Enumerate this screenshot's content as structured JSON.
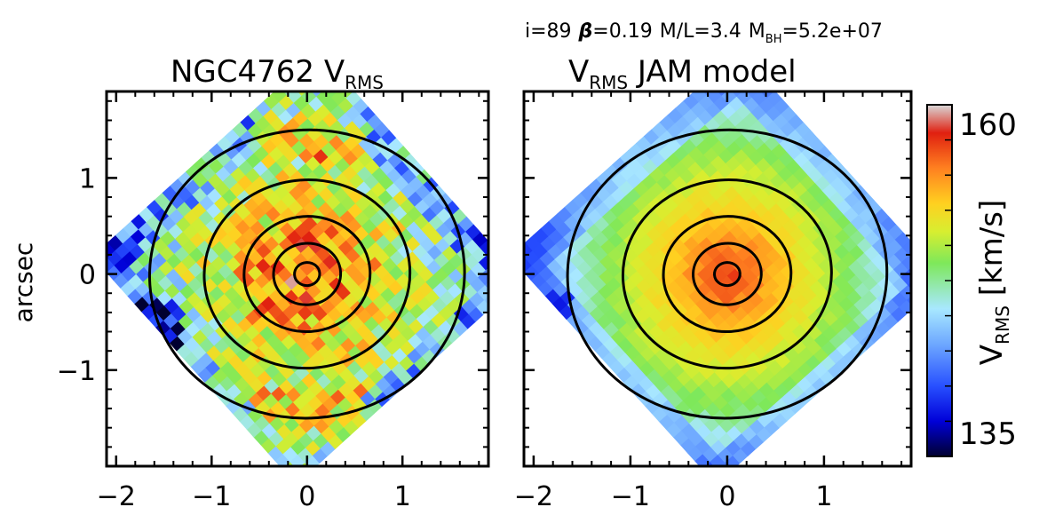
{
  "chart_data": [
    {
      "type": "heatmap",
      "title": "NGC4762 V",
      "title_sub": "RMS",
      "xlabel": "",
      "ylabel": "arcsec",
      "xlim": [
        -2.1,
        1.9
      ],
      "ylim": [
        -2.0,
        1.9
      ],
      "xticks": [
        -2,
        -1,
        0,
        1
      ],
      "xtick_labels": [
        "−2",
        "−1",
        "0",
        "1"
      ],
      "yticks": [
        -1,
        0,
        1
      ],
      "ytick_labels": [
        "−1",
        "0",
        "1"
      ],
      "contour_radii": [
        0.12,
        0.32,
        0.6,
        0.98,
        1.5
      ],
      "field_rotation_deg": 42
    },
    {
      "type": "heatmap",
      "title_pre": "V",
      "title_sub": "RMS",
      "title_post": " JAM model",
      "xlabel": "",
      "ylabel": "",
      "xlim": [
        -2.1,
        1.9
      ],
      "ylim": [
        -2.0,
        1.9
      ],
      "xticks": [
        -2,
        -1,
        0,
        1
      ],
      "xtick_labels": [
        "−2",
        "−1",
        "0",
        "1"
      ],
      "contour_radii": [
        0.12,
        0.32,
        0.6,
        0.98,
        1.5
      ],
      "field_rotation_deg": 42
    }
  ],
  "model_params": {
    "i_text": "i=89",
    "beta_symbol": "β",
    "beta_text": "=0.19",
    "ml_text": "M/L=3.4",
    "mbh_pre": "M",
    "mbh_sub": "BH",
    "mbh_post": "=5.2e+07"
  },
  "colorbar": {
    "min": 135,
    "max": 160,
    "min_label": "135",
    "max_label": "160",
    "label_pre": "V",
    "label_sub": "RMS",
    "label_post": " [km/s]",
    "colors": [
      "#000030",
      "#0000d8",
      "#2850ff",
      "#6ea8ff",
      "#a8e8ff",
      "#7ee85a",
      "#d8ee30",
      "#ffd020",
      "#ff8020",
      "#e02010",
      "#d8d8d8"
    ]
  }
}
